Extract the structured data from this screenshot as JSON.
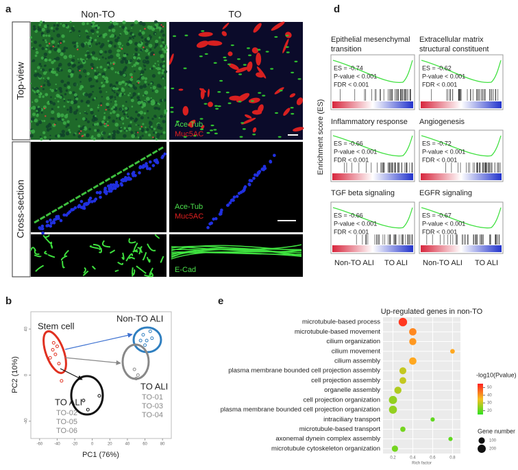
{
  "panel_a": {
    "label": "a",
    "columns": [
      "Non-TO",
      "TO"
    ],
    "rows": [
      "Top-view",
      "Cross-section"
    ],
    "legend_top": [
      "Ace-Tub",
      "Muc5AC"
    ],
    "legend_cross": [
      "Ace-Tub",
      "Muc5AC"
    ],
    "legend_bottom": "E-Cad"
  },
  "panel_d": {
    "label": "d",
    "y_label": "Enrichment score (ES)",
    "x_labels": [
      "Non-TO ALI",
      "TO ALI"
    ],
    "plots": [
      {
        "title": [
          "Epithelial mesenchymal",
          "transition"
        ],
        "stats": [
          "ES = -0.74",
          "P-value < 0.001",
          "FDR < 0.001"
        ]
      },
      {
        "title": [
          "Extracellular matrix",
          "structural constituent"
        ],
        "stats": [
          "ES = -0.62",
          "P-value < 0.001",
          "FDR < 0.001"
        ]
      },
      {
        "title": [
          "Inflammatory response"
        ],
        "stats": [
          "ES = -0.66",
          "P-value < 0.001",
          "FDR < 0.001"
        ]
      },
      {
        "title": [
          "Angiogenesis"
        ],
        "stats": [
          "ES = -0.72",
          "P-value < 0.001",
          "FDR < 0.001"
        ]
      },
      {
        "title": [
          "TGF beta signaling"
        ],
        "stats": [
          "ES = -0.66",
          "P-value < 0.001",
          "FDR < 0.001"
        ]
      },
      {
        "title": [
          "EGFR signaling"
        ],
        "stats": [
          "ES = -0.67",
          "P-value < 0.001",
          "FDR < 0.001"
        ]
      }
    ]
  },
  "chart_data": [
    {
      "type": "scatter",
      "label": "b",
      "x_label": "PC1 (76%)",
      "y_label": "PC2 (10%)",
      "xlim": [
        -70,
        90
      ],
      "ylim": [
        -55,
        55
      ],
      "xticks": [
        -60,
        -40,
        -20,
        0,
        20,
        40,
        60,
        80
      ],
      "yticks": [
        40,
        0,
        -40
      ],
      "series": [
        {
          "name": "Stem cell",
          "color": "#e03020",
          "x": [
            -45,
            -42,
            -40,
            -48,
            -38,
            -35,
            -44
          ],
          "y": [
            22,
            18,
            25,
            15,
            10,
            -5,
            28
          ]
        },
        {
          "name": "Non-TO ALI",
          "color": "#2f7fc0",
          "x": [
            58,
            62,
            68,
            60,
            66,
            55
          ],
          "y": [
            35,
            30,
            32,
            26,
            38,
            30
          ]
        },
        {
          "name": "TO ALI",
          "color": "#888888",
          "x": [
            48,
            52,
            50
          ],
          "y": [
            5,
            0,
            -3
          ],
          "samples": [
            "TO-01",
            "TO-03",
            "TO-04"
          ]
        },
        {
          "name": "TO ALI",
          "color": "#111111",
          "x": [
            -10,
            -5,
            8
          ],
          "y": [
            -22,
            -30,
            -18
          ],
          "samples": [
            "TO-02",
            "TO-05",
            "TO-06"
          ]
        }
      ]
    },
    {
      "type": "dot",
      "label": "e",
      "title": "Up-regulated genes in non-TO",
      "x_label": "Rich factor",
      "categories": [
        "microtubule-based process",
        "microtubule-based movement",
        "cilium organization",
        "cilium movement",
        "cilium assembly",
        "plasma membrane bounded cell projection assembly",
        "cell projection assembly",
        "organelle assembly",
        "cell projection organization",
        "plasma membrane bounded cell projection organization",
        "intraciliary transport",
        "microtubule-based transport",
        "axonemal dynein complex assembly",
        "microtubule cytoskeleton organization"
      ],
      "values": [
        0.3,
        0.4,
        0.4,
        0.8,
        0.4,
        0.3,
        0.3,
        0.25,
        0.2,
        0.2,
        0.6,
        0.3,
        0.78,
        0.22
      ],
      "neglog10p": [
        52,
        42,
        40,
        38,
        38,
        30,
        30,
        28,
        25,
        25,
        20,
        22,
        20,
        22
      ],
      "gene_number": [
        220,
        150,
        140,
        40,
        150,
        130,
        120,
        140,
        200,
        190,
        30,
        60,
        30,
        100
      ],
      "xlim": [
        0.1,
        0.88
      ],
      "xticks": [
        0.2,
        0.4,
        0.6,
        0.8
      ],
      "color_label": "-log10(Pvalue)",
      "clim": [
        15,
        55
      ],
      "cticks": [
        50,
        40,
        30,
        20
      ],
      "size_label": "Gene number",
      "size_ticks": [
        100,
        200
      ]
    }
  ]
}
